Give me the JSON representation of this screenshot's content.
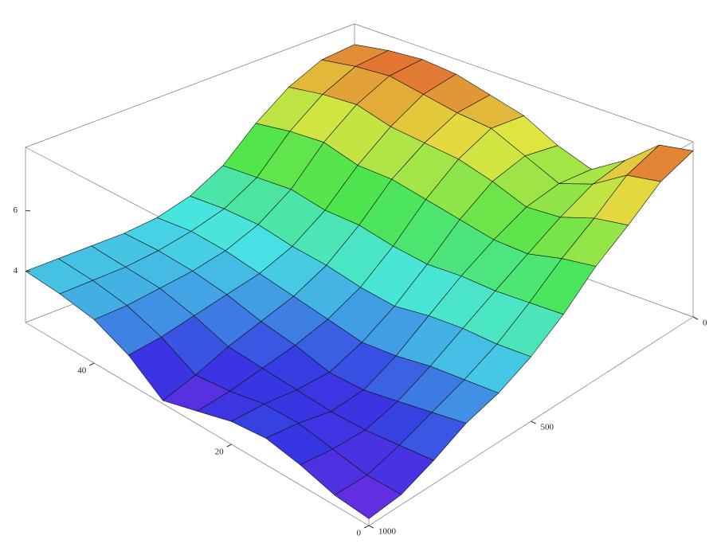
{
  "chart_data": {
    "type": "surface",
    "x": [
      0,
      100,
      200,
      300,
      400,
      500,
      600,
      700,
      800,
      900,
      1000
    ],
    "y": [
      0,
      5,
      10,
      15,
      20,
      25,
      30,
      35,
      40,
      45,
      50
    ],
    "z": [
      [
        7.8,
        7.4,
        6.6,
        5.9,
        5.0,
        4.3,
        3.8,
        3.5,
        3.0,
        2.6,
        2.5
      ],
      [
        7.6,
        7.2,
        6.4,
        5.7,
        4.9,
        4.2,
        3.7,
        3.3,
        2.9,
        2.6,
        2.6
      ],
      [
        6.7,
        6.5,
        6.0,
        5.4,
        4.8,
        4.2,
        3.6,
        3.1,
        2.8,
        2.8,
        2.9
      ],
      [
        6.0,
        6.1,
        5.9,
        5.4,
        4.8,
        4.1,
        3.4,
        2.9,
        2.8,
        3.0,
        3.1
      ],
      [
        6.4,
        6.6,
        6.3,
        5.6,
        4.7,
        3.9,
        3.3,
        2.9,
        2.9,
        3.0,
        3.0
      ],
      [
        7.0,
        7.1,
        6.6,
        5.8,
        4.8,
        4.0,
        3.5,
        3.2,
        3.0,
        2.8,
        2.7
      ],
      [
        7.3,
        7.2,
        6.7,
        6.0,
        5.0,
        4.2,
        3.7,
        3.4,
        3.1,
        2.7,
        2.4
      ],
      [
        7.6,
        7.4,
        6.8,
        6.0,
        5.0,
        4.3,
        3.9,
        3.7,
        3.5,
        3.3,
        3.2
      ],
      [
        7.7,
        7.6,
        7.1,
        6.3,
        5.2,
        4.5,
        4.1,
        3.9,
        3.8,
        3.7,
        3.7
      ],
      [
        7.6,
        7.5,
        7.0,
        6.2,
        5.1,
        4.5,
        4.2,
        4.0,
        3.9,
        3.9,
        3.9
      ],
      [
        7.4,
        7.3,
        6.8,
        6.0,
        5.0,
        4.4,
        4.1,
        4.0,
        4.0,
        4.0,
        4.0
      ]
    ],
    "xlim": [
      0,
      1000
    ],
    "ylim": [
      0,
      50
    ],
    "zlim": [
      2.3,
      8.1
    ],
    "xticks": [
      0,
      500,
      1000
    ],
    "yticks": [
      0,
      20,
      40
    ],
    "zticks": [
      4,
      6
    ],
    "colormap": "rainbow",
    "mesh": true
  }
}
